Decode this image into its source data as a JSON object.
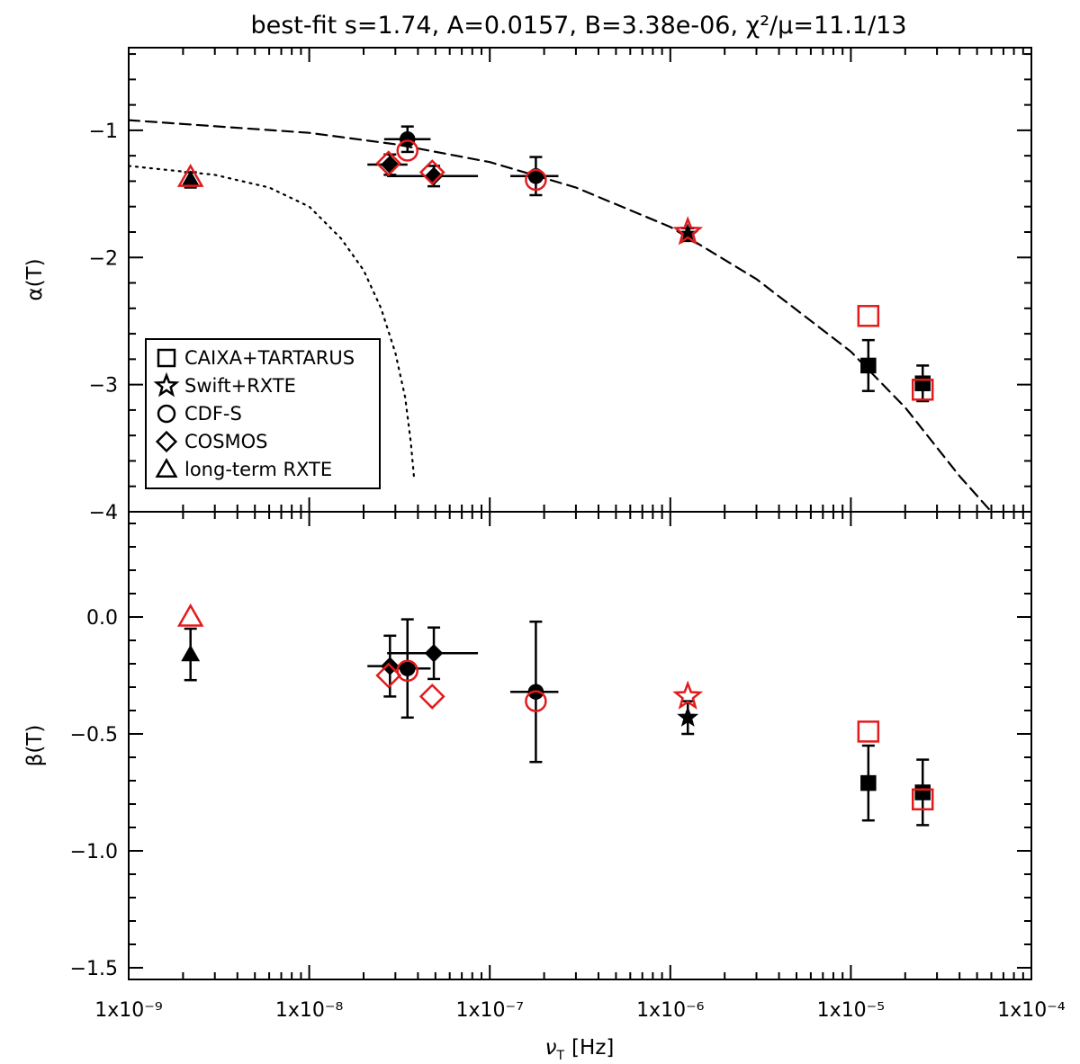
{
  "chart_data": {
    "type": "scatter",
    "title": "best-fit s=1.74, A=0.0157, B=3.38e-06, χ²/μ=11.1/13",
    "xlabel": "ν_T [Hz]",
    "xlabel_main": "ν",
    "xlabel_sub": "T",
    "xlabel_unit": "[Hz]",
    "xscale": "log",
    "xlim": [
      1e-09,
      0.0001
    ],
    "xtick_values": [
      1e-09,
      1e-08,
      1e-07,
      1e-06,
      1e-05,
      0.0001
    ],
    "xtick_labels": [
      "1x10⁻⁹",
      "1x10⁻⁸",
      "1x10⁻⁷",
      "1x10⁻⁶",
      "1x10⁻⁵",
      "1x10⁻⁴"
    ],
    "colors": {
      "measured": "#000000",
      "model": "#e31a1c"
    },
    "legend": {
      "location": "lower-left of top panel",
      "entries": [
        {
          "label": "CAIXA+TARTARUS",
          "marker": "square"
        },
        {
          "label": "Swift+RXTE",
          "marker": "star"
        },
        {
          "label": "CDF-S",
          "marker": "circle"
        },
        {
          "label": "COSMOS",
          "marker": "diamond"
        },
        {
          "label": "long-term RXTE",
          "marker": "triangle"
        }
      ]
    },
    "panels": [
      {
        "id": "alpha",
        "ylabel": "α(T)",
        "ylim": [
          -4.0,
          -0.35
        ],
        "yticks": [
          -4,
          -3,
          -2,
          -1
        ],
        "ytick_labels": [
          "−4",
          "−3",
          "−2",
          "−1"
        ],
        "curves": [
          {
            "name": "best-fit model",
            "style": "dashed",
            "x": [
              1e-09,
              1e-08,
              3e-08,
              1e-07,
              3e-07,
              1e-06,
              3e-06,
              1e-05,
              2e-05,
              4e-05,
              6e-05
            ],
            "y": [
              -0.92,
              -1.02,
              -1.11,
              -1.25,
              -1.45,
              -1.76,
              -2.17,
              -2.74,
              -3.18,
              -3.72,
              -4.0
            ]
          },
          {
            "name": "dotted curve",
            "style": "dotted",
            "x": [
              1e-09,
              3e-09,
              6e-09,
              1e-08,
              1.5e-08,
              2e-08,
              2.5e-08,
              3e-08,
              3.4e-08,
              3.65e-08,
              3.8e-08
            ],
            "y": [
              -1.28,
              -1.35,
              -1.45,
              -1.6,
              -1.85,
              -2.1,
              -2.4,
              -2.75,
              -3.1,
              -3.45,
              -3.72
            ]
          }
        ],
        "measured": [
          {
            "set": "long-term RXTE",
            "marker": "triangle",
            "x": 2.2e-09,
            "y": -1.39,
            "yerr": 0.06,
            "xerr": [
              2.2e-09,
              2.2e-09
            ]
          },
          {
            "set": "COSMOS",
            "marker": "diamond",
            "x": 2.8e-08,
            "y": -1.27,
            "yerr": 0.08,
            "xerr": [
              2.1e-08,
              3.5e-08
            ]
          },
          {
            "set": "CDF-S",
            "marker": "circle",
            "x": 3.5e-08,
            "y": -1.07,
            "yerr": 0.1,
            "xerr": [
              2.6e-08,
              4.7e-08
            ]
          },
          {
            "set": "COSMOS",
            "marker": "diamond",
            "x": 4.9e-08,
            "y": -1.36,
            "yerr": 0.08,
            "xerr": [
              2.7e-08,
              8.6e-08
            ]
          },
          {
            "set": "CDF-S",
            "marker": "circle",
            "x": 1.8e-07,
            "y": -1.36,
            "yerr": 0.15,
            "xerr": [
              1.3e-07,
              2.4e-07
            ]
          },
          {
            "set": "Swift+RXTE",
            "marker": "star",
            "x": 1.25e-06,
            "y": -1.82,
            "yerr": 0.05,
            "xerr": [
              1.25e-06,
              1.25e-06
            ]
          },
          {
            "set": "CAIXA+TARTARUS",
            "marker": "square",
            "x": 1.25e-05,
            "y": -2.85,
            "yerr": 0.2,
            "xerr": [
              1.25e-05,
              1.25e-05
            ]
          },
          {
            "set": "CAIXA+TARTARUS",
            "marker": "square",
            "x": 2.5e-05,
            "y": -2.99,
            "yerr": 0.14,
            "xerr": [
              2.5e-05,
              2.5e-05
            ]
          }
        ],
        "model": [
          {
            "set": "long-term RXTE",
            "marker": "triangle",
            "x": 2.2e-09,
            "y": -1.37
          },
          {
            "set": "COSMOS",
            "marker": "diamond",
            "x": 2.75e-08,
            "y": -1.26
          },
          {
            "set": "CDF-S",
            "marker": "circle",
            "x": 3.5e-08,
            "y": -1.16
          },
          {
            "set": "COSMOS",
            "marker": "diamond",
            "x": 4.8e-08,
            "y": -1.33
          },
          {
            "set": "CDF-S",
            "marker": "circle",
            "x": 1.8e-07,
            "y": -1.39
          },
          {
            "set": "Swift+RXTE",
            "marker": "star",
            "x": 1.25e-06,
            "y": -1.8
          },
          {
            "set": "CAIXA+TARTARUS",
            "marker": "square",
            "x": 1.25e-05,
            "y": -2.46
          },
          {
            "set": "CAIXA+TARTARUS",
            "marker": "square",
            "x": 2.5e-05,
            "y": -3.04
          }
        ]
      },
      {
        "id": "beta",
        "ylabel": "β(T)",
        "ylim": [
          -1.55,
          0.45
        ],
        "yticks": [
          -1.5,
          -1.0,
          -0.5,
          0.0
        ],
        "ytick_labels": [
          "−1.5",
          "−1.0",
          "−0.5",
          "0.0"
        ],
        "curves": [],
        "measured": [
          {
            "set": "long-term RXTE",
            "marker": "triangle",
            "x": 2.2e-09,
            "y": -0.16,
            "yerr": 0.11,
            "xerr": [
              2.2e-09,
              2.2e-09
            ]
          },
          {
            "set": "COSMOS",
            "marker": "diamond",
            "x": 2.8e-08,
            "y": -0.21,
            "yerr": 0.13,
            "xerr": [
              2.1e-08,
              3.5e-08
            ]
          },
          {
            "set": "CDF-S",
            "marker": "circle",
            "x": 3.5e-08,
            "y": -0.22,
            "yerr": 0.21,
            "xerr": [
              2.6e-08,
              4.7e-08
            ]
          },
          {
            "set": "COSMOS",
            "marker": "diamond",
            "x": 4.9e-08,
            "y": -0.155,
            "yerr": 0.11,
            "xerr": [
              2.7e-08,
              8.6e-08
            ]
          },
          {
            "set": "CDF-S",
            "marker": "circle",
            "x": 1.8e-07,
            "y": -0.32,
            "yerr": 0.3,
            "xerr": [
              1.3e-07,
              2.4e-07
            ]
          },
          {
            "set": "Swift+RXTE",
            "marker": "star",
            "x": 1.25e-06,
            "y": -0.43,
            "yerr": 0.07,
            "xerr": [
              1.25e-06,
              1.25e-06
            ]
          },
          {
            "set": "CAIXA+TARTARUS",
            "marker": "square",
            "x": 1.25e-05,
            "y": -0.71,
            "yerr": 0.16,
            "xerr": [
              1.25e-05,
              1.25e-05
            ]
          },
          {
            "set": "CAIXA+TARTARUS",
            "marker": "square",
            "x": 2.5e-05,
            "y": -0.75,
            "yerr": 0.14,
            "xerr": [
              2.5e-05,
              2.5e-05
            ]
          }
        ],
        "model": [
          {
            "set": "long-term RXTE",
            "marker": "triangle",
            "x": 2.2e-09,
            "y": 0.0
          },
          {
            "set": "COSMOS",
            "marker": "diamond",
            "x": 2.75e-08,
            "y": -0.25
          },
          {
            "set": "CDF-S",
            "marker": "circle",
            "x": 3.5e-08,
            "y": -0.23
          },
          {
            "set": "COSMOS",
            "marker": "diamond",
            "x": 4.8e-08,
            "y": -0.34
          },
          {
            "set": "CDF-S",
            "marker": "circle",
            "x": 1.8e-07,
            "y": -0.36
          },
          {
            "set": "Swift+RXTE",
            "marker": "star",
            "x": 1.25e-06,
            "y": -0.34
          },
          {
            "set": "CAIXA+TARTARUS",
            "marker": "square",
            "x": 1.25e-05,
            "y": -0.49
          },
          {
            "set": "CAIXA+TARTARUS",
            "marker": "square",
            "x": 2.5e-05,
            "y": -0.78
          }
        ]
      }
    ]
  }
}
